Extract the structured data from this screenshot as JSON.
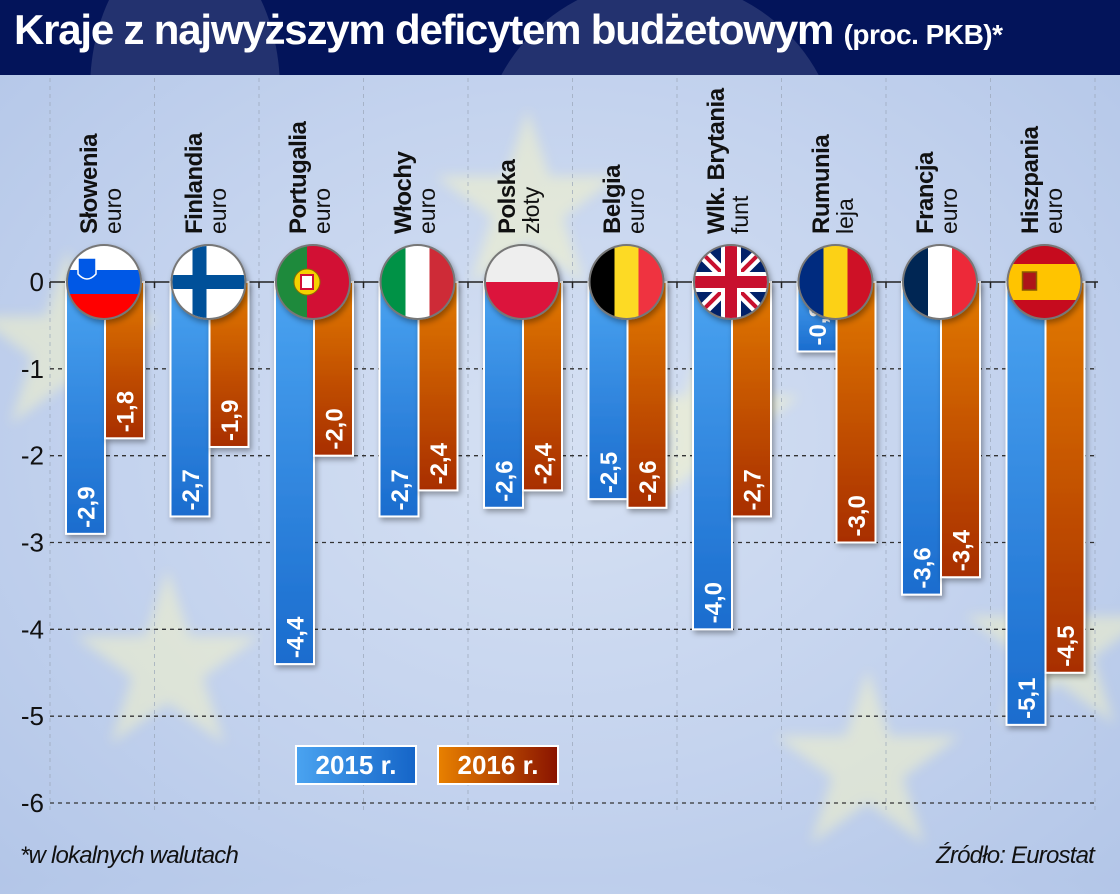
{
  "header": {
    "title": "Kraje z najwyższym deficytem budżetowym",
    "subtitle": "(proc. PKB)*"
  },
  "footer": {
    "note": "*w lokalnych walutach",
    "source": "Źródło: Eurostat"
  },
  "colors": {
    "header_bg": "#03145a",
    "series_2015_light": "#4aa3f0",
    "series_2015_dark": "#1565c8",
    "series_2016_light": "#e88000",
    "series_2016_dark": "#8a1400"
  },
  "chart_data": {
    "type": "bar",
    "title": "Kraje z najwyższym deficytem budżetowym (proc. PKB)*",
    "xlabel": "",
    "ylabel": "",
    "ylim": [
      -6,
      0
    ],
    "yticks": [
      0,
      -1,
      -2,
      -3,
      -4,
      -5,
      -6
    ],
    "ytick_labels": [
      "0",
      "-1",
      "-2",
      "-3",
      "-4",
      "-5",
      "-6"
    ],
    "grid": true,
    "legend_position": "bottom-left",
    "categories": [
      "Słowenia",
      "Finlandia",
      "Portugalia",
      "Włochy",
      "Polska",
      "Belgia",
      "Wlk. Brytania",
      "Rumunia",
      "Francja",
      "Hiszpania"
    ],
    "currencies": [
      "euro",
      "euro",
      "euro",
      "euro",
      "złoty",
      "euro",
      "funt",
      "leja",
      "euro",
      "euro"
    ],
    "flags": [
      "slovenia-flag",
      "finland-flag",
      "portugal-flag",
      "italy-flag",
      "poland-flag",
      "belgium-flag",
      "uk-flag",
      "romania-flag",
      "france-flag",
      "spain-flag"
    ],
    "series": [
      {
        "name": "2015 r.",
        "values": [
          -2.9,
          -2.7,
          -4.4,
          -2.7,
          -2.6,
          -2.5,
          -4.0,
          -0.8,
          -3.6,
          -5.1
        ],
        "labels": [
          "-2,9",
          "-2,7",
          "-4,4",
          "-2,7",
          "-2,6",
          "-2,5",
          "-4,0",
          "-0,8",
          "-3,6",
          "-5,1"
        ]
      },
      {
        "name": "2016 r.",
        "values": [
          -1.8,
          -1.9,
          -2.0,
          -2.4,
          -2.4,
          -2.6,
          -2.7,
          -3.0,
          -3.4,
          -4.5
        ],
        "labels": [
          "-1,8",
          "-1,9",
          "-2,0",
          "-2,4",
          "-2,4",
          "-2,6",
          "-2,7",
          "-3,0",
          "-3,4",
          "-4,5"
        ]
      }
    ]
  }
}
